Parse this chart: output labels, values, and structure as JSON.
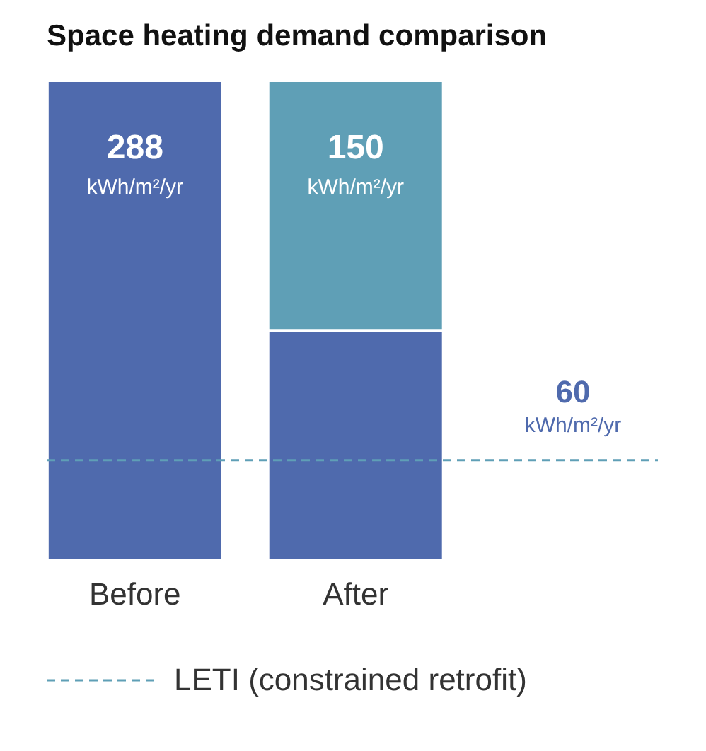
{
  "chart_data": {
    "type": "bar",
    "title": "Space heating demand comparison",
    "categories": [
      "Before",
      "After"
    ],
    "stacked": true,
    "series": [
      {
        "color": "#4f6aad",
        "values": [
          288,
          138
        ],
        "value_labels": [
          "288 kWh/m²/yr",
          null
        ]
      },
      {
        "color": "#5f9fb6",
        "values": [
          null,
          150
        ],
        "value_labels": [
          null,
          "150 kWh/m²/yr"
        ]
      }
    ],
    "ylim": [
      0,
      288
    ],
    "tick_labels": "x",
    "legend": "bottom",
    "ref_lines": [
      {
        "axis": "y",
        "value": 60,
        "label": "LETI (constrained retrofit)",
        "color": "#5f9fb6",
        "line_style": "dashed"
      }
    ],
    "annotations": [
      {
        "text": "60 kWh/m²/yr",
        "y": 60
      }
    ]
  }
}
